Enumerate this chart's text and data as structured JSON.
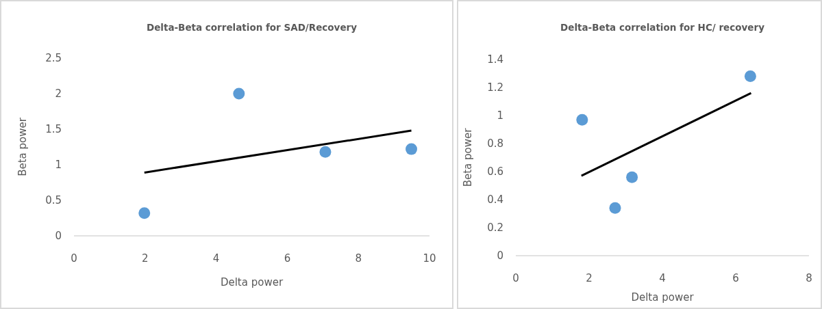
{
  "chart_data": [
    {
      "type": "scatter",
      "title": "Delta-Beta correlation for SAD/Recovery",
      "xlabel": "Delta power",
      "ylabel": "Beta power",
      "xlim": [
        0,
        10
      ],
      "xticks": [
        0,
        2,
        4,
        6,
        8,
        10
      ],
      "ylim": [
        0,
        2.5
      ],
      "yticks": [
        0,
        0.5,
        1,
        1.5,
        2,
        2.5
      ],
      "grid": false,
      "series": [
        {
          "color": "#5b9bd5",
          "marker": "circle",
          "x": [
            1.98,
            4.64,
            7.07,
            9.49
          ],
          "values": [
            0.32,
            2.0,
            1.18,
            1.22
          ]
        },
        {
          "type": "line",
          "color": "#000000",
          "marker": "none",
          "x": [
            1.98,
            9.49
          ],
          "values": [
            0.89,
            1.48
          ]
        }
      ]
    },
    {
      "type": "scatter",
      "title": "Delta-Beta correlation for HC/ recovery",
      "xlabel": "Delta power",
      "ylabel": "Beta power",
      "xlim": [
        0,
        8
      ],
      "xticks": [
        0,
        2,
        4,
        6,
        8
      ],
      "ylim": [
        0,
        1.4
      ],
      "yticks": [
        0,
        0.2,
        0.4,
        0.6,
        0.8,
        1,
        1.2,
        1.4
      ],
      "grid": false,
      "series": [
        {
          "color": "#5b9bd5",
          "marker": "circle",
          "x": [
            1.81,
            2.71,
            3.17,
            6.4
          ],
          "values": [
            0.97,
            0.34,
            0.56,
            1.28
          ]
        },
        {
          "type": "line",
          "color": "#000000",
          "marker": "none",
          "x": [
            1.79,
            6.42
          ],
          "values": [
            0.57,
            1.16
          ]
        }
      ]
    }
  ]
}
